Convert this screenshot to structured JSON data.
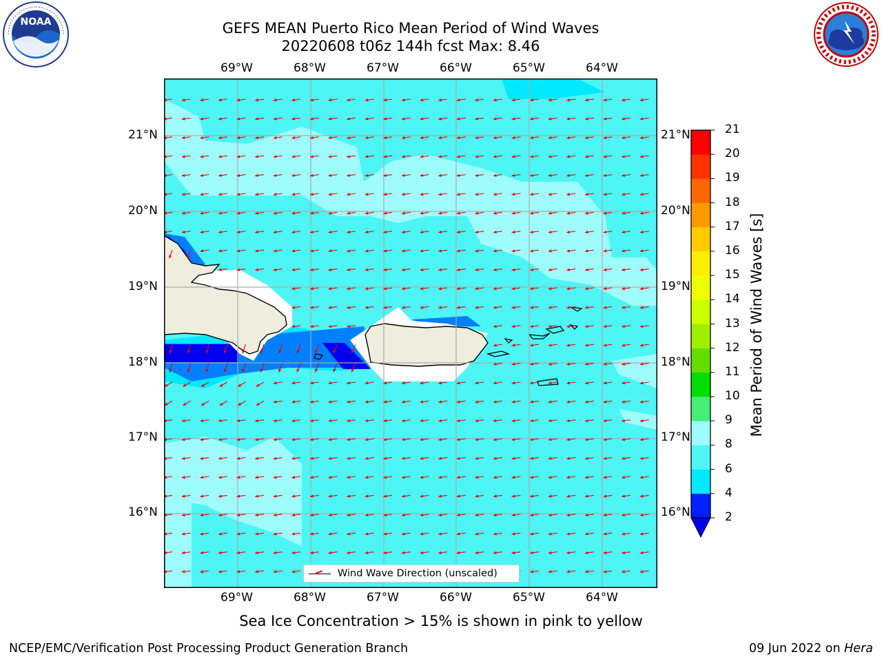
{
  "title": {
    "line1": "GEFS MEAN Puerto Rico Mean Period of Wind Waves",
    "line2": "20220608 t06z 144h fcst   Max: 8.46"
  },
  "logos": {
    "left": "NOAA",
    "left_ring": "NATIONAL OCEANIC AND ATMOSPHERIC ADMINISTRATION · U.S. DEPARTMENT OF COMMERCE",
    "right_ring": "NATIONAL WEATHER SERVICE"
  },
  "axes": {
    "lon_labels": [
      "69°W",
      "68°W",
      "67°W",
      "66°W",
      "65°W",
      "64°W"
    ],
    "lat_labels": [
      "21°N",
      "20°N",
      "19°N",
      "18°N",
      "17°N",
      "16°N"
    ]
  },
  "colorbar": {
    "label": "Mean Period of Wind Waves [s]",
    "ticks": [
      "2",
      "4",
      "6",
      "8",
      "9",
      "10",
      "11",
      "12",
      "13",
      "14",
      "15",
      "16",
      "17",
      "18",
      "19",
      "20",
      "21"
    ],
    "colors": [
      "#0020ff",
      "#00e9ff",
      "#4df5f5",
      "#9ffcfc",
      "#44ee77",
      "#00dd00",
      "#66dd00",
      "#a0ee00",
      "#ccff00",
      "#eeff00",
      "#ffee00",
      "#ffcc00",
      "#ff9900",
      "#ff6600",
      "#ff3300",
      "#ff0000"
    ],
    "under_color": "#0000ee"
  },
  "legend": {
    "label": "Wind Wave Direction (unscaled)"
  },
  "footnote": "Sea Ice Concentration > 15% is shown in pink to yellow",
  "footer": {
    "left": "NCEP/EMC/Verification Post Processing Product Generation Branch",
    "right_prefix": "09 Jun 2022 on ",
    "right_host": "Hera"
  },
  "colors": {
    "base_field": "#4df5f5",
    "light_field": "#9ffcfc",
    "bright_field": "#00e9ff",
    "low_field": "#0080ff",
    "min_field": "#0000ee",
    "land": "#efedde",
    "arrows": "#ee0000"
  }
}
